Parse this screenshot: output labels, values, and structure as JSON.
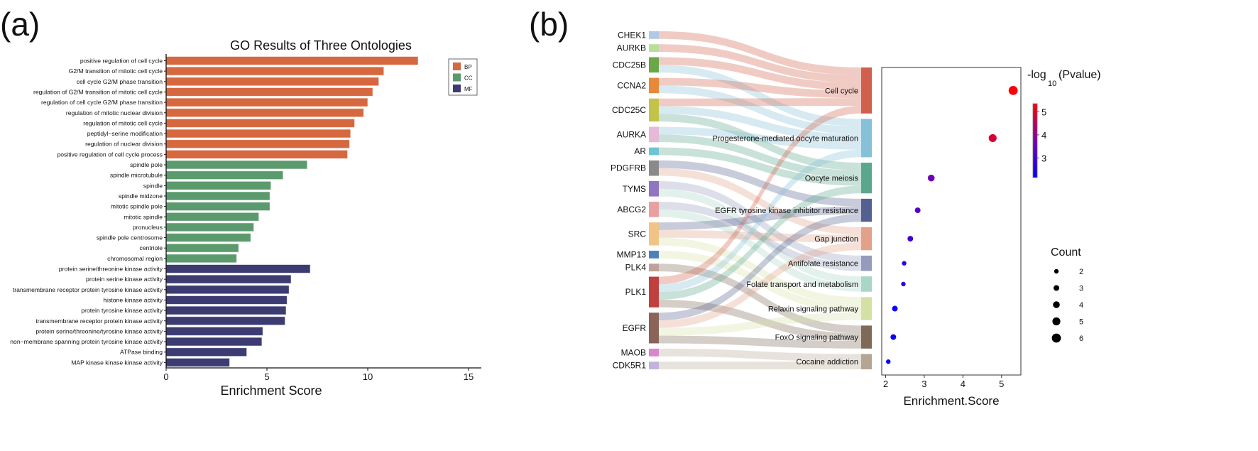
{
  "panel_labels": {
    "a": "(a)",
    "b": "(b)"
  },
  "chart_data": [
    {
      "type": "bar",
      "orientation": "horizontal",
      "title": "GO Results of Three Ontologies",
      "xlabel": "Enrichment Score",
      "xlim": [
        0,
        15.6
      ],
      "xticks": [
        0,
        5,
        10,
        15
      ],
      "xtick_labels": [
        "0",
        "5",
        "10",
        "15"
      ],
      "grid": false,
      "legend": {
        "position": "top-right",
        "entries": [
          {
            "label": "BP",
            "color": "#d6683f"
          },
          {
            "label": "CC",
            "color": "#5b9a6d"
          },
          {
            "label": "MF",
            "color": "#3c3c72"
          }
        ]
      },
      "categories": [
        "positive regulation of cell cycle",
        "G2/M transition of mitotic cell cycle",
        "cell cycle G2/M phase transition",
        "regulation of G2/M transition of mitotic cell cycle",
        "regulation of cell cycle G2/M phase transition",
        "regulation of mitotic nuclear division",
        "regulation of mitotic cell cycle",
        "peptidyl−serine modification",
        "regulation of nuclear division",
        "positive regulation of cell cycle process",
        "spindle pole",
        "spindle microtubule",
        "spindle",
        "spindle midzone",
        "mitotic spindle pole",
        "mitotic spindle",
        "pronucleus",
        "spindle pole centrosome",
        "centriole",
        "chromosomal region",
        "protein serine/threonine kinase activity",
        "protein serine kinase activity",
        "transmembrane receptor protein tyrosine kinase activity",
        "histone kinase activity",
        "protein tyrosine kinase activity",
        "transmembrane receptor protein kinase activity",
        "protein serine/threonine/tyrosine kinase activity",
        "non−membrane spanning protein tyrosine kinase activity",
        "ATPase binding",
        "MAP kinase kinase kinase activity"
      ],
      "values": [
        12.5,
        10.8,
        10.55,
        10.25,
        10.0,
        9.8,
        9.35,
        9.15,
        9.1,
        9.0,
        7.0,
        5.8,
        5.2,
        5.15,
        5.15,
        4.6,
        4.35,
        4.2,
        3.6,
        3.5,
        7.15,
        6.2,
        6.1,
        6.0,
        5.95,
        5.9,
        4.8,
        4.75,
        4.0,
        3.15
      ],
      "groups": [
        "BP",
        "BP",
        "BP",
        "BP",
        "BP",
        "BP",
        "BP",
        "BP",
        "BP",
        "BP",
        "CC",
        "CC",
        "CC",
        "CC",
        "CC",
        "CC",
        "CC",
        "CC",
        "CC",
        "CC",
        "MF",
        "MF",
        "MF",
        "MF",
        "MF",
        "MF",
        "MF",
        "MF",
        "MF",
        "MF"
      ]
    },
    {
      "type": "sankey",
      "genes": [
        {
          "name": "CHEK1",
          "color": "#b3c7e6"
        },
        {
          "name": "AURKB",
          "color": "#b5e09a"
        },
        {
          "name": "CDC25B",
          "color": "#6aa64a"
        },
        {
          "name": "CCNA2",
          "color": "#e8893a"
        },
        {
          "name": "CDC25C",
          "color": "#c3c34a"
        },
        {
          "name": "AURKA",
          "color": "#e8b8d8"
        },
        {
          "name": "AR",
          "color": "#6ec4d2"
        },
        {
          "name": "PDGFRB",
          "color": "#8a8a8a"
        },
        {
          "name": "TYMS",
          "color": "#9175c0"
        },
        {
          "name": "ABCG2",
          "color": "#e8a0a0"
        },
        {
          "name": "SRC",
          "color": "#f0c487"
        },
        {
          "name": "MMP13",
          "color": "#4f7fbb"
        },
        {
          "name": "PLK4",
          "color": "#c0a09a"
        },
        {
          "name": "PLK1",
          "color": "#c0403f"
        },
        {
          "name": "EGFR",
          "color": "#8a6458"
        },
        {
          "name": "MAOB",
          "color": "#d985cf"
        },
        {
          "name": "CDK5R1",
          "color": "#c3b3dc"
        }
      ],
      "pathways": [
        {
          "name": "Cell cycle",
          "color": "#d0604c"
        },
        {
          "name": "Progesterone-mediated oocyte maturation",
          "color": "#86c0d9"
        },
        {
          "name": "Oocyte meiosis",
          "color": "#5aa78d"
        },
        {
          "name": "EGFR tyrosine kinase inhibitor resistance",
          "color": "#546190"
        },
        {
          "name": "Gap junction",
          "color": "#e2a188"
        },
        {
          "name": "Antifolate resistance",
          "color": "#969bbd"
        },
        {
          "name": "Folate transport and metabolism",
          "color": "#aad6c8"
        },
        {
          "name": "Relaxin signaling pathway",
          "color": "#d5e0a4"
        },
        {
          "name": "FoxO signaling pathway",
          "color": "#7f6a58"
        },
        {
          "name": "Cocaine addiction",
          "color": "#b5a693"
        }
      ],
      "links": [
        [
          "CHEK1",
          "Cell cycle"
        ],
        [
          "AURKB",
          "Cell cycle"
        ],
        [
          "CDC25B",
          "Cell cycle"
        ],
        [
          "CDC25B",
          "Progesterone-mediated oocyte maturation"
        ],
        [
          "CCNA2",
          "Cell cycle"
        ],
        [
          "CCNA2",
          "Progesterone-mediated oocyte maturation"
        ],
        [
          "CDC25C",
          "Cell cycle"
        ],
        [
          "CDC25C",
          "Progesterone-mediated oocyte maturation"
        ],
        [
          "CDC25C",
          "Oocyte meiosis"
        ],
        [
          "AURKA",
          "Progesterone-mediated oocyte maturation"
        ],
        [
          "AURKA",
          "Oocyte meiosis"
        ],
        [
          "AR",
          "Oocyte meiosis"
        ],
        [
          "PDGFRB",
          "EGFR tyrosine kinase inhibitor resistance"
        ],
        [
          "PDGFRB",
          "Gap junction"
        ],
        [
          "TYMS",
          "Antifolate resistance"
        ],
        [
          "TYMS",
          "Folate transport and metabolism"
        ],
        [
          "ABCG2",
          "Antifolate resistance"
        ],
        [
          "ABCG2",
          "Folate transport and metabolism"
        ],
        [
          "SRC",
          "EGFR tyrosine kinase inhibitor resistance"
        ],
        [
          "SRC",
          "Gap junction"
        ],
        [
          "SRC",
          "Relaxin signaling pathway"
        ],
        [
          "MMP13",
          "Relaxin signaling pathway"
        ],
        [
          "PLK4",
          "FoxO signaling pathway"
        ],
        [
          "PLK1",
          "Cell cycle"
        ],
        [
          "PLK1",
          "Progesterone-mediated oocyte maturation"
        ],
        [
          "PLK1",
          "Oocyte meiosis"
        ],
        [
          "PLK1",
          "FoxO signaling pathway"
        ],
        [
          "EGFR",
          "EGFR tyrosine kinase inhibitor resistance"
        ],
        [
          "EGFR",
          "Gap junction"
        ],
        [
          "EGFR",
          "Relaxin signaling pathway"
        ],
        [
          "EGFR",
          "FoxO signaling pathway"
        ],
        [
          "MAOB",
          "Cocaine addiction"
        ],
        [
          "CDK5R1",
          "Cocaine addiction"
        ]
      ]
    },
    {
      "type": "scatter",
      "note_rows": "rows align with sankey pathways order",
      "xlabel": "Enrichment.Score",
      "xlim": [
        1.9,
        5.5
      ],
      "xticks": [
        2,
        3,
        4,
        5
      ],
      "xtick_labels": [
        "2",
        "3",
        "4",
        "5"
      ],
      "enrichment_score": [
        5.3,
        4.77,
        3.18,
        2.83,
        2.64,
        2.48,
        2.46,
        2.24,
        2.2,
        2.07
      ],
      "neg_log10_pvalue": [
        5.3,
        4.9,
        3.6,
        3.3,
        3.0,
        2.8,
        2.8,
        2.3,
        2.3,
        2.2
      ],
      "count": [
        6,
        5,
        4,
        3,
        3,
        2,
        2,
        3,
        3,
        2
      ],
      "colorbar": {
        "title_prefix": "-log",
        "title_sub": "10",
        "title_suffix": "(Pvalue)",
        "range": [
          2.15,
          5.35
        ],
        "ticks": [
          3,
          4,
          5
        ],
        "tick_labels": [
          "3",
          "4",
          "5"
        ],
        "low_color": "#0000ff",
        "mid_color": "#7a00b0",
        "high_color": "#ff0000"
      },
      "size_legend": {
        "title": "Count",
        "values": [
          2,
          3,
          4,
          5,
          6
        ],
        "labels": [
          "2",
          "3",
          "4",
          "5",
          "6"
        ]
      }
    }
  ]
}
